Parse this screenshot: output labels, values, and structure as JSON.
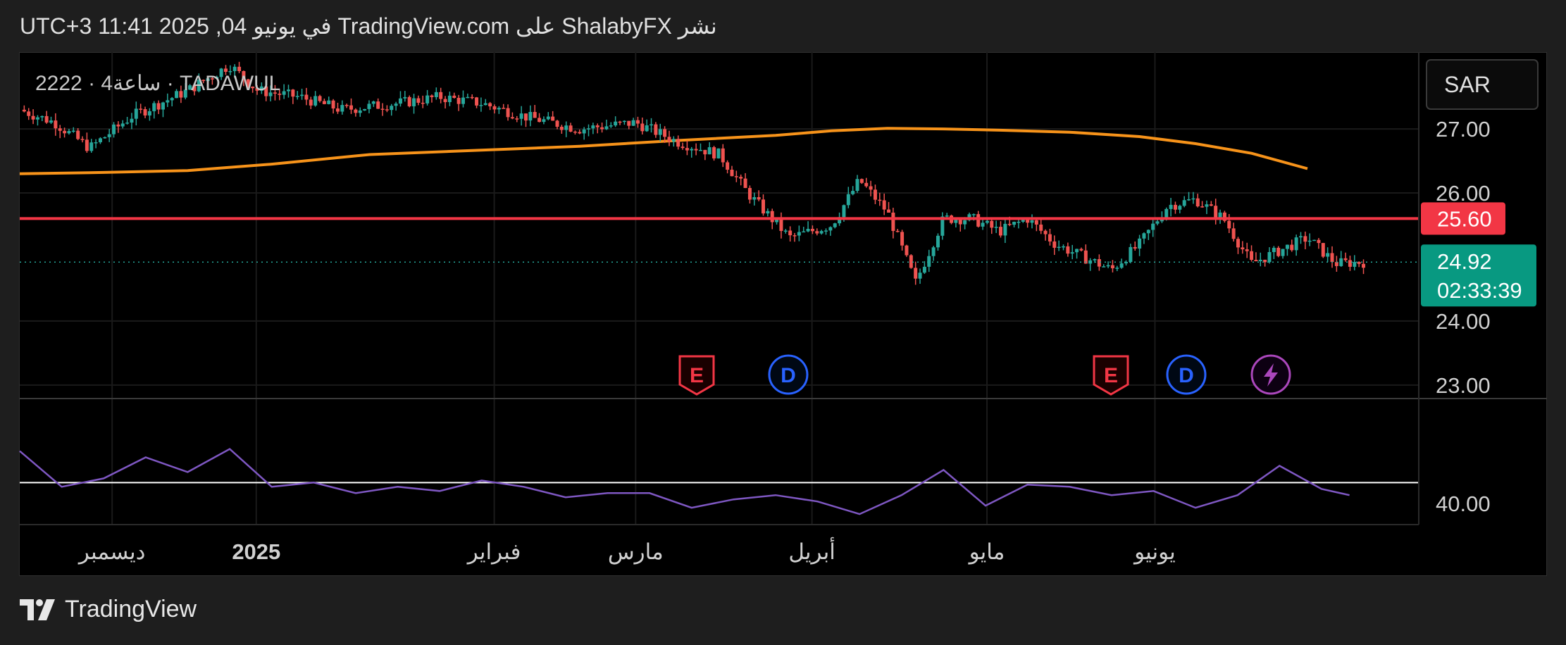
{
  "header": {
    "publish_text": "نشر ShalabyFX على TradingView.com في يونيو 04, 2025 11:41 UTC+3"
  },
  "symbol": {
    "legend": "2222 · 4ساعة · TADAWUL"
  },
  "currency": {
    "label": "SAR"
  },
  "price_badges": {
    "resistance": "25.60",
    "last_price": "24.92",
    "countdown": "02:33:39"
  },
  "colors": {
    "up": "#26a69a",
    "down": "#ef5350",
    "ma": "#f7931a",
    "resistance": "#f23645",
    "rsi": "#7e57c2",
    "last_price_bg": "#089981",
    "event_e": "#f23645",
    "event_d": "#2962ff",
    "event_split": "#ab47bc"
  },
  "events": [
    {
      "icon": "earnings-e-icon",
      "label": "E",
      "time": "مارس"
    },
    {
      "icon": "dividend-d-icon",
      "label": "D",
      "time": "مارس"
    },
    {
      "icon": "earnings-e-icon",
      "label": "E",
      "time": "مايو"
    },
    {
      "icon": "dividend-d-icon",
      "label": "D",
      "time": "مايو"
    },
    {
      "icon": "split-bolt-icon",
      "label": "",
      "time": "يونيو"
    }
  ],
  "footer": {
    "brand": "TradingView"
  },
  "chart_data": [
    {
      "type": "candlestick",
      "title": "",
      "y_ticks": [
        27.0,
        26.0,
        24.0,
        23.0
      ],
      "ylim": [
        22.8,
        28.2
      ],
      "x_ticks": [
        "ديسمبر",
        "2025",
        "فبراير",
        "مارس",
        "أبريل",
        "مايو",
        "يونيو"
      ],
      "horizontal_line": 25.6,
      "last_price": 24.92,
      "ma_series": {
        "x": [
          0,
          0.06,
          0.12,
          0.18,
          0.25,
          0.32,
          0.4,
          0.47,
          0.54,
          0.58,
          0.62,
          0.66,
          0.7,
          0.75,
          0.8,
          0.84,
          0.88,
          0.92
        ],
        "values": [
          26.3,
          26.32,
          26.35,
          26.45,
          26.6,
          26.66,
          26.73,
          26.82,
          26.9,
          26.97,
          27.01,
          27.0,
          26.98,
          26.95,
          26.88,
          26.77,
          26.62,
          26.38
        ]
      },
      "price_path": {
        "x": [
          0,
          0.025,
          0.05,
          0.08,
          0.12,
          0.15,
          0.17,
          0.2,
          0.23,
          0.27,
          0.3,
          0.33,
          0.36,
          0.4,
          0.44,
          0.47,
          0.5,
          0.52,
          0.55,
          0.58,
          0.6,
          0.62,
          0.64,
          0.66,
          0.68,
          0.7,
          0.72,
          0.74,
          0.76,
          0.78,
          0.8,
          0.82,
          0.84,
          0.86,
          0.88,
          0.9,
          0.92,
          0.94,
          0.96
        ],
        "values": [
          27.3,
          27.1,
          26.7,
          27.2,
          27.6,
          28.0,
          27.6,
          27.5,
          27.3,
          27.4,
          27.5,
          27.4,
          27.2,
          27.0,
          27.1,
          26.8,
          26.6,
          26.0,
          25.3,
          25.5,
          26.2,
          25.7,
          24.6,
          25.6,
          25.6,
          25.4,
          25.6,
          25.2,
          25.0,
          24.8,
          25.2,
          25.8,
          25.9,
          25.6,
          24.9,
          25.1,
          25.3,
          24.9,
          24.92
        ]
      }
    },
    {
      "type": "line",
      "title": "",
      "y_ticks": [
        40.0
      ],
      "ylim": [
        30,
        90
      ],
      "baseline": 50,
      "x": [
        0,
        0.03,
        0.06,
        0.09,
        0.12,
        0.15,
        0.18,
        0.21,
        0.24,
        0.27,
        0.3,
        0.33,
        0.36,
        0.39,
        0.42,
        0.45,
        0.48,
        0.51,
        0.54,
        0.57,
        0.6,
        0.63,
        0.66,
        0.69,
        0.72,
        0.75,
        0.78,
        0.81,
        0.84,
        0.87,
        0.9,
        0.93,
        0.95
      ],
      "values": [
        65,
        48,
        52,
        62,
        55,
        66,
        48,
        50,
        45,
        48,
        46,
        51,
        48,
        43,
        45,
        45,
        38,
        42,
        44,
        41,
        35,
        44,
        56,
        39,
        49,
        48,
        44,
        46,
        38,
        44,
        58,
        47,
        44
      ]
    }
  ]
}
